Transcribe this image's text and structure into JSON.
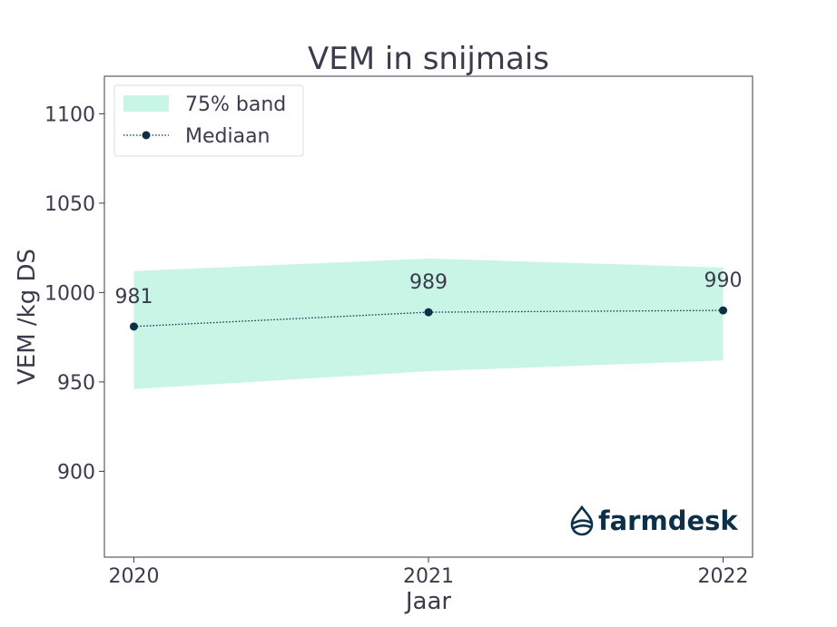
{
  "chart_data": {
    "type": "line",
    "title": "VEM in snijmais",
    "xlabel": "Jaar",
    "ylabel": "VEM /kg DS",
    "x": [
      2020,
      2021,
      2022
    ],
    "x_tick_labels": [
      "2020",
      "2021",
      "2022"
    ],
    "xlim": [
      2019.9,
      2022.1
    ],
    "ylim": [
      852,
      1121
    ],
    "y_ticks": [
      900,
      950,
      1000,
      1050,
      1100
    ],
    "y_tick_labels": [
      "900",
      "950",
      "1000",
      "1050",
      "1100"
    ],
    "grid": false,
    "legend_position": "top-left",
    "series": [
      {
        "name": "75% band",
        "kind": "band",
        "lower": [
          946,
          956,
          962
        ],
        "upper": [
          1012,
          1019,
          1014
        ],
        "color": "#c9f5e6"
      },
      {
        "name": "Mediaan",
        "kind": "line",
        "values": [
          981,
          989,
          990
        ],
        "labels": [
          "981",
          "989",
          "990"
        ],
        "color": "#0d3048"
      }
    ]
  },
  "logo": {
    "text": "farmdesk",
    "color": "#0d3048"
  }
}
